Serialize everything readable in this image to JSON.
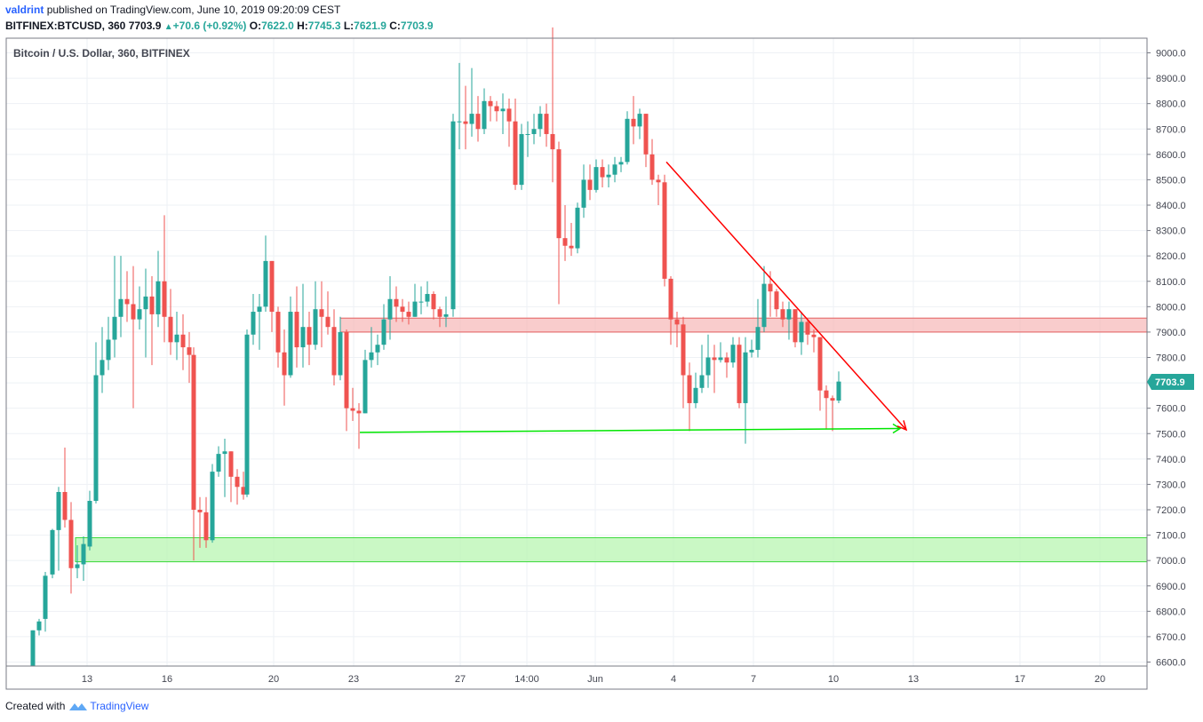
{
  "header": {
    "username": "valdrint",
    "published_text": "published on TradingView.com, June 10, 2019 09:20:09 CEST",
    "symbol": "BITFINEX:BTCUSD, 360",
    "last_price": "7703.9",
    "change": "+70.6 (+0.92%)",
    "open_label": "O:",
    "open": "7622.0",
    "high_label": "H:",
    "high": "7745.3",
    "low_label": "L:",
    "low": "7621.9",
    "close_label": "C:",
    "close": "7703.9"
  },
  "footer": {
    "created_with": "Created with",
    "brand": "TradingView"
  },
  "colors": {
    "up": "#26a69a",
    "down": "#ef5350",
    "trendline": "#ff0000",
    "support_line": "#00e600",
    "resistance_zone": "#f7b7b7",
    "support_zone": "#b8f5b2"
  },
  "chart_data": {
    "type": "candlestick",
    "title": "Bitcoin / U.S. Dollar, 360, BITFINEX",
    "ylim": [
      6575,
      9105
    ],
    "y_ticks": [
      "9000.0",
      "8900.0",
      "8800.0",
      "8700.0",
      "8600.0",
      "8500.0",
      "8400.0",
      "8300.0",
      "8200.0",
      "8100.0",
      "8000.0",
      "7900.0",
      "7800.0",
      "7700.0",
      "7600.0",
      "7500.0",
      "7400.0",
      "7300.0",
      "7200.0",
      "7100.0",
      "7000.0",
      "6900.0",
      "6800.0",
      "6700.0",
      "6600.0"
    ],
    "x_ticks": [
      {
        "label": "13",
        "t": 98
      },
      {
        "label": "16",
        "t": 188
      },
      {
        "label": "20",
        "t": 308
      },
      {
        "label": "23",
        "t": 398
      },
      {
        "label": "27",
        "t": 518
      },
      {
        "label": "14:00",
        "t": 593
      },
      {
        "label": "Jun",
        "t": 670
      },
      {
        "label": "4",
        "t": 758
      },
      {
        "label": "7",
        "t": 848
      },
      {
        "label": "10",
        "t": 938
      },
      {
        "label": "13",
        "t": 1028
      },
      {
        "label": "17",
        "t": 1148
      },
      {
        "label": "20",
        "t": 1238
      }
    ],
    "price_label": "7703.9",
    "resistance_zone": [
      7900,
      7955
    ],
    "support_zone": [
      6995,
      7090
    ],
    "support_line": {
      "from": [
        405,
        7505
      ],
      "to": [
        1013,
        7520
      ]
    },
    "trendline": {
      "from": [
        750,
        8570
      ],
      "to": [
        1020,
        7515
      ]
    },
    "candles": [
      [
        37,
        6575,
        6725,
        6575,
        6725
      ],
      [
        44,
        6725,
        6760,
        6705,
        6770
      ],
      [
        51,
        6770,
        6940,
        6720,
        6955
      ],
      [
        59,
        6945,
        7120,
        6930,
        7125
      ],
      [
        66,
        7120,
        7270,
        6960,
        7290
      ],
      [
        73,
        7270,
        7160,
        7130,
        7445
      ],
      [
        80,
        7160,
        6970,
        6870,
        7230
      ],
      [
        87,
        6970,
        6985,
        6930,
        7060
      ],
      [
        94,
        6985,
        7065,
        6920,
        7095
      ],
      [
        101,
        7055,
        7235,
        7040,
        7275
      ],
      [
        108,
        7235,
        7730,
        7225,
        7860
      ],
      [
        115,
        7730,
        7790,
        7660,
        7920
      ],
      [
        122,
        7790,
        7870,
        7750,
        7960
      ],
      [
        129,
        7870,
        7960,
        7800,
        8200
      ],
      [
        136,
        7960,
        8030,
        7880,
        8200
      ],
      [
        143,
        8030,
        8010,
        7940,
        8140
      ],
      [
        150,
        8010,
        7950,
        7600,
        8160
      ],
      [
        157,
        7950,
        7990,
        7910,
        8080
      ],
      [
        164,
        7990,
        8040,
        7800,
        8150
      ],
      [
        171,
        8040,
        7970,
        7770,
        8120
      ],
      [
        178,
        7970,
        8100,
        7920,
        8220
      ],
      [
        185,
        8100,
        7960,
        7860,
        8360
      ],
      [
        192,
        7960,
        7860,
        7810,
        8070
      ],
      [
        199,
        7860,
        7890,
        7790,
        7980
      ],
      [
        206,
        7890,
        7840,
        7750,
        7970
      ],
      [
        213,
        7840,
        7810,
        7700,
        7900
      ],
      [
        218,
        7810,
        7200,
        7000,
        7840
      ],
      [
        225,
        7200,
        7190,
        7050,
        7250
      ],
      [
        232,
        7190,
        7080,
        7050,
        7250
      ],
      [
        239,
        7080,
        7350,
        7070,
        7380
      ],
      [
        246,
        7350,
        7420,
        7330,
        7450
      ],
      [
        253,
        7420,
        7430,
        7250,
        7480
      ],
      [
        260,
        7430,
        7330,
        7230,
        7430
      ],
      [
        267,
        7330,
        7290,
        7220,
        7360
      ],
      [
        274,
        7290,
        7260,
        7240,
        7350
      ],
      [
        278,
        7260,
        7890,
        7250,
        7910
      ],
      [
        285,
        7890,
        7980,
        7850,
        8050
      ],
      [
        292,
        7980,
        8000,
        7830,
        8050
      ],
      [
        299,
        8000,
        8180,
        7980,
        8280
      ],
      [
        306,
        8180,
        7980,
        7900,
        8180
      ],
      [
        313,
        7980,
        7820,
        7760,
        8000
      ],
      [
        320,
        7820,
        7730,
        7610,
        7910
      ],
      [
        327,
        7730,
        7980,
        7720,
        8040
      ],
      [
        334,
        7980,
        7840,
        7760,
        8080
      ],
      [
        341,
        7840,
        7920,
        7760,
        8090
      ],
      [
        348,
        7920,
        7850,
        7770,
        7980
      ],
      [
        355,
        7850,
        7990,
        7830,
        8100
      ],
      [
        362,
        7990,
        7960,
        7840,
        8100
      ],
      [
        369,
        7960,
        7920,
        7890,
        8060
      ],
      [
        376,
        7920,
        7730,
        7690,
        7990
      ],
      [
        383,
        7730,
        7900,
        7710,
        7960
      ],
      [
        390,
        7900,
        7600,
        7510,
        7910
      ],
      [
        397,
        7600,
        7590,
        7550,
        7680
      ],
      [
        404,
        7590,
        7580,
        7440,
        7620
      ],
      [
        411,
        7580,
        7790,
        7580,
        7830
      ],
      [
        418,
        7790,
        7820,
        7760,
        7920
      ],
      [
        425,
        7820,
        7850,
        7770,
        7890
      ],
      [
        432,
        7850,
        7950,
        7830,
        8010
      ],
      [
        439,
        7950,
        8030,
        7870,
        8120
      ],
      [
        446,
        8030,
        8000,
        7940,
        8080
      ],
      [
        453,
        8000,
        7980,
        7940,
        8030
      ],
      [
        460,
        7980,
        7960,
        7930,
        8020
      ],
      [
        467,
        7960,
        8020,
        7960,
        8090
      ],
      [
        474,
        8020,
        8020,
        7970,
        8080
      ],
      [
        481,
        8020,
        8050,
        8000,
        8100
      ],
      [
        488,
        8050,
        7990,
        7950,
        8060
      ],
      [
        495,
        7990,
        7960,
        7920,
        8000
      ],
      [
        502,
        7960,
        7970,
        7920,
        8040
      ],
      [
        510,
        7990,
        8730,
        7960,
        8760
      ],
      [
        517,
        8730,
        8730,
        8620,
        8960
      ],
      [
        524,
        8730,
        8720,
        8620,
        8870
      ],
      [
        531,
        8720,
        8760,
        8670,
        8940
      ],
      [
        538,
        8760,
        8700,
        8650,
        8830
      ],
      [
        545,
        8700,
        8810,
        8680,
        8860
      ],
      [
        552,
        8810,
        8790,
        8730,
        8830
      ],
      [
        559,
        8790,
        8770,
        8730,
        8810
      ],
      [
        566,
        8770,
        8780,
        8680,
        8840
      ],
      [
        573,
        8780,
        8730,
        8630,
        8820
      ],
      [
        580,
        8730,
        8480,
        8460,
        8820
      ],
      [
        587,
        8480,
        8680,
        8460,
        8720
      ],
      [
        594,
        8680,
        8680,
        8590,
        8730
      ],
      [
        601,
        8680,
        8700,
        8640,
        8760
      ],
      [
        608,
        8700,
        8760,
        8670,
        8790
      ],
      [
        615,
        8760,
        8680,
        8630,
        8800
      ],
      [
        622,
        8680,
        8620,
        8490,
        9100
      ],
      [
        629,
        8620,
        8270,
        8010,
        8650
      ],
      [
        636,
        8270,
        8240,
        8180,
        8400
      ],
      [
        643,
        8240,
        8230,
        8200,
        8330
      ],
      [
        650,
        8230,
        8390,
        8210,
        8410
      ],
      [
        657,
        8390,
        8500,
        8350,
        8560
      ],
      [
        664,
        8500,
        8460,
        8420,
        8560
      ],
      [
        671,
        8460,
        8550,
        8450,
        8580
      ],
      [
        678,
        8550,
        8510,
        8470,
        8580
      ],
      [
        685,
        8510,
        8520,
        8470,
        8560
      ],
      [
        692,
        8520,
        8560,
        8490,
        8590
      ],
      [
        699,
        8560,
        8570,
        8530,
        8590
      ],
      [
        706,
        8570,
        8740,
        8560,
        8770
      ],
      [
        713,
        8740,
        8710,
        8640,
        8830
      ],
      [
        720,
        8710,
        8760,
        8660,
        8780
      ],
      [
        727,
        8760,
        8600,
        8550,
        8760
      ],
      [
        734,
        8600,
        8500,
        8480,
        8660
      ],
      [
        741,
        8500,
        8490,
        8400,
        8520
      ],
      [
        748,
        8490,
        8110,
        8080,
        8520
      ],
      [
        755,
        8110,
        7950,
        7850,
        8120
      ],
      [
        762,
        7950,
        7930,
        7840,
        7980
      ],
      [
        769,
        7930,
        7730,
        7600,
        7960
      ],
      [
        776,
        7730,
        7620,
        7510,
        7780
      ],
      [
        783,
        7620,
        7680,
        7600,
        7740
      ],
      [
        790,
        7680,
        7730,
        7660,
        7850
      ],
      [
        797,
        7730,
        7800,
        7680,
        7890
      ],
      [
        804,
        7800,
        7790,
        7660,
        7850
      ],
      [
        811,
        7790,
        7800,
        7780,
        7860
      ],
      [
        818,
        7800,
        7780,
        7720,
        7820
      ],
      [
        825,
        7780,
        7850,
        7760,
        7880
      ],
      [
        832,
        7850,
        7620,
        7600,
        7880
      ],
      [
        839,
        7620,
        7820,
        7460,
        7880
      ],
      [
        846,
        7820,
        7830,
        7800,
        7870
      ],
      [
        853,
        7830,
        7920,
        7800,
        8030
      ],
      [
        860,
        7920,
        8090,
        7900,
        8160
      ],
      [
        867,
        8090,
        8060,
        7960,
        8140
      ],
      [
        874,
        8060,
        7990,
        7960,
        8070
      ],
      [
        881,
        7990,
        7950,
        7920,
        8020
      ],
      [
        888,
        7950,
        7990,
        7870,
        8020
      ],
      [
        895,
        7990,
        7860,
        7840,
        7990
      ],
      [
        902,
        7860,
        7940,
        7810,
        7980
      ],
      [
        909,
        7940,
        7890,
        7850,
        7950
      ],
      [
        916,
        7890,
        7880,
        7820,
        7910
      ],
      [
        923,
        7880,
        7670,
        7590,
        7880
      ],
      [
        930,
        7670,
        7640,
        7520,
        7690
      ],
      [
        937,
        7640,
        7630,
        7510,
        7650
      ],
      [
        944,
        7630,
        7705,
        7620,
        7745
      ]
    ]
  }
}
